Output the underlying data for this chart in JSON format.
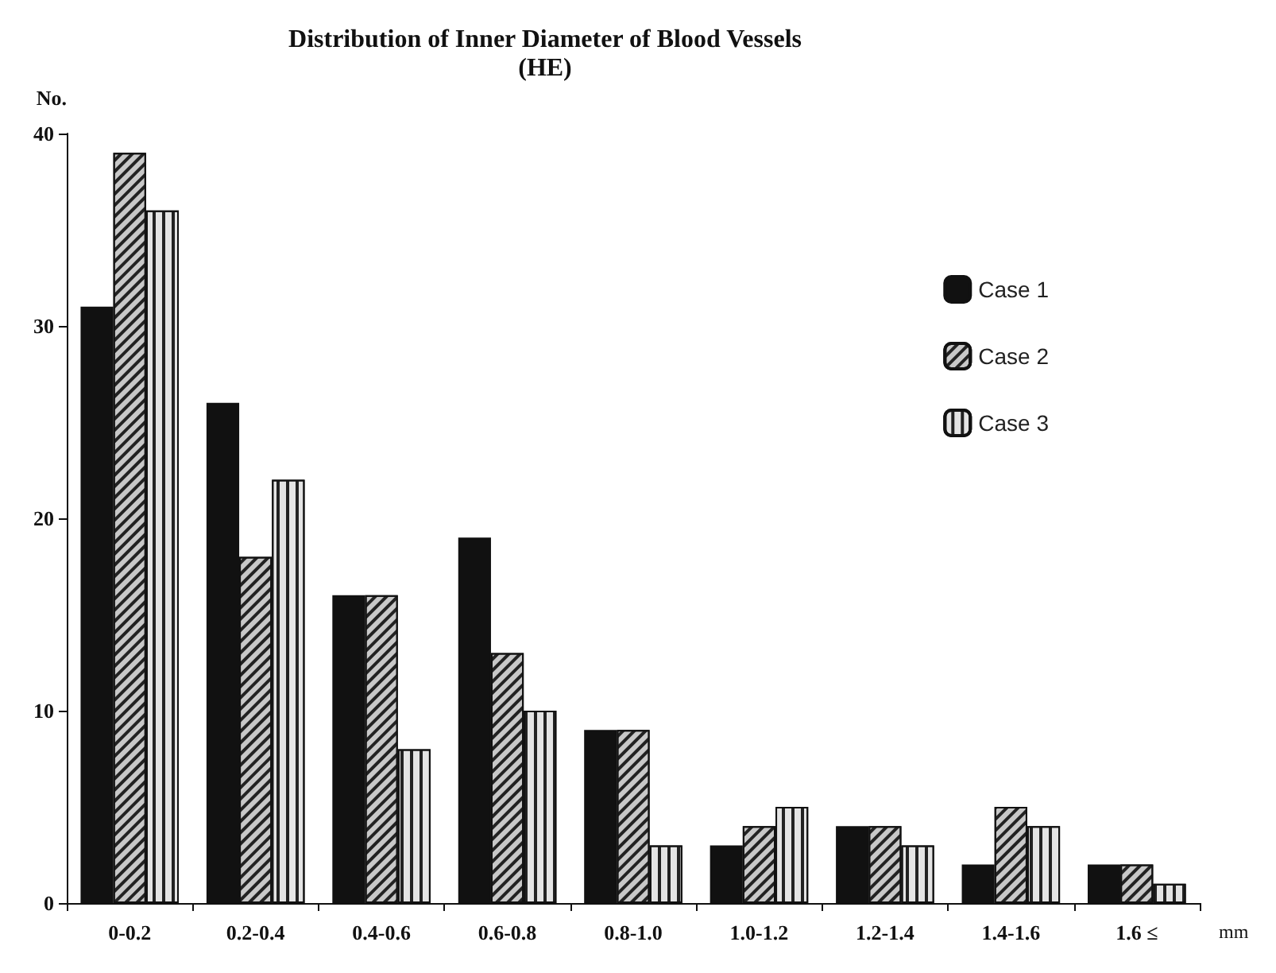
{
  "chart_data": {
    "type": "bar",
    "title": "Distribution of Inner Diameter of Blood Vessels",
    "subtitle": "(HE)",
    "xlabel": "mm",
    "ylabel": "No.",
    "categories": [
      "0-0.2",
      "0.2-0.4",
      "0.4-0.6",
      "0.6-0.8",
      "0.8-1.0",
      "1.0-1.2",
      "1.2-1.4",
      "1.4-1.6",
      "1.6 ≤"
    ],
    "series": [
      {
        "name": "Case 1",
        "color": "#111111",
        "values": [
          31,
          26,
          16,
          19,
          9,
          3,
          4,
          2,
          2
        ]
      },
      {
        "name": "Case 2",
        "color": "#c8c8c8",
        "values": [
          39,
          18,
          16,
          13,
          9,
          4,
          4,
          5,
          2
        ]
      },
      {
        "name": "Case 3",
        "color": "#e4e4e4",
        "values": [
          36,
          22,
          8,
          10,
          3,
          5,
          3,
          4,
          1
        ]
      }
    ],
    "ylim": [
      0,
      40
    ],
    "yticks": [
      0,
      10,
      20,
      30,
      40
    ],
    "grid": false,
    "legend": "top right"
  }
}
